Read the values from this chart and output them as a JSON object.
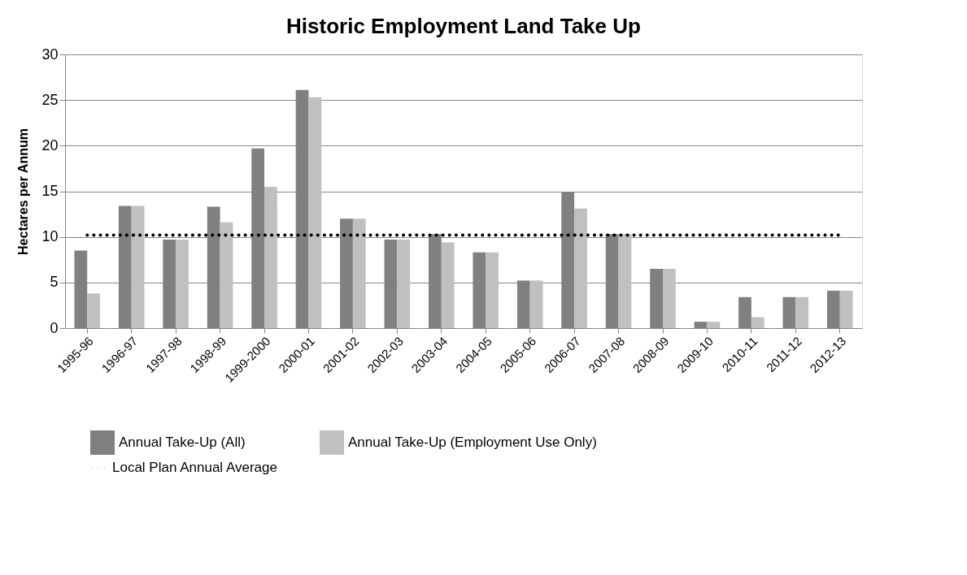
{
  "chart_data": {
    "type": "bar",
    "title": "Historic Employment Land Take Up",
    "ylabel": "Hectares per Annum",
    "categories": [
      "1995-96",
      "1996-97",
      "1997-98",
      "1998-99",
      "1999-2000",
      "2000-01",
      "2001-02",
      "2002-03",
      "2003-04",
      "2004-05",
      "2005-06",
      "2006-07",
      "2007-08",
      "2008-09",
      "2009-10",
      "2010-11",
      "2011-12",
      "2012-13"
    ],
    "series": [
      {
        "name": "Annual Take-Up (All)",
        "color": "#808080",
        "values": [
          8.5,
          13.4,
          9.7,
          13.3,
          19.7,
          26.1,
          12.0,
          9.7,
          10.3,
          8.3,
          5.2,
          14.9,
          10.3,
          6.5,
          0.7,
          3.4,
          3.4,
          4.1
        ]
      },
      {
        "name": "Annual Take-Up (Employment Use Only)",
        "color": "#c0c0c0",
        "values": [
          3.8,
          13.4,
          9.7,
          11.6,
          15.5,
          25.3,
          12.0,
          9.7,
          9.4,
          8.3,
          5.2,
          13.1,
          10.3,
          6.5,
          0.7,
          1.2,
          3.4,
          4.1
        ]
      },
      {
        "name": "Local Plan Annual Average",
        "color": "#000000",
        "type": "line",
        "line_style": "dotted",
        "marker": "none",
        "values": [
          10.2,
          10.2,
          10.2,
          10.2,
          10.2,
          10.2,
          10.2,
          10.2,
          10.2,
          10.2,
          10.2,
          10.2,
          10.2,
          10.2,
          10.2,
          10.2,
          10.2,
          10.2
        ]
      }
    ],
    "ylim": [
      0,
      30
    ],
    "yticks": [
      0,
      5,
      10,
      15,
      20,
      25,
      30
    ],
    "grid": "y",
    "legend": "bottom"
  }
}
